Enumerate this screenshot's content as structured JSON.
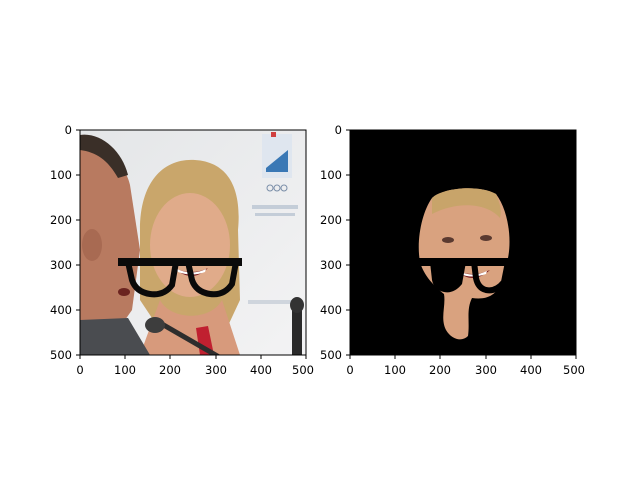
{
  "chart_data": [
    {
      "type": "image",
      "title": "",
      "xlabel": "",
      "ylabel": "",
      "xlim": [
        0,
        500
      ],
      "ylim": [
        500,
        0
      ],
      "y_inverted": true,
      "xticks": [
        "0",
        "100",
        "200",
        "300",
        "400",
        "500"
      ],
      "yticks": [
        "0",
        "100",
        "200",
        "300",
        "400",
        "500"
      ],
      "content": "photo of a smiling woman (right) beside a man (left) speaking into a microphone, with black glasses overlay drawn across the face region"
    },
    {
      "type": "image",
      "title": "",
      "xlabel": "",
      "ylabel": "",
      "xlim": [
        0,
        500
      ],
      "ylim": [
        500,
        0
      ],
      "y_inverted": true,
      "xticks": [
        "0",
        "100",
        "200",
        "300",
        "400",
        "500"
      ],
      "yticks": [
        "0",
        "100",
        "200",
        "300",
        "400",
        "500"
      ],
      "content": "segmentation mask result: black background, only the woman's face region visible with a black glasses-shaped cut-out"
    }
  ],
  "colors": {
    "background": "#ffffff",
    "axis": "#000000",
    "mask_background": "#000000",
    "skin": "#d9a27f",
    "hair": "#c8a46a",
    "glasses": "#0a0a0a"
  }
}
